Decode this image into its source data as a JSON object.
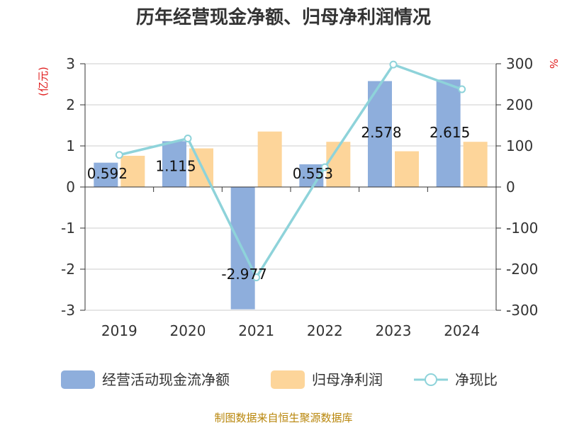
{
  "chart_data": {
    "type": "bar",
    "title": "历年经营现金净额、归母净利润情况",
    "categories": [
      "2019",
      "2020",
      "2021",
      "2022",
      "2023",
      "2024"
    ],
    "y_left": {
      "unit": "(亿元)",
      "range": [
        -3,
        3
      ],
      "ticks": [
        3,
        2,
        1,
        0,
        -1,
        -2,
        -3
      ]
    },
    "y_right": {
      "unit": "%",
      "range": [
        -300,
        300
      ],
      "ticks": [
        300,
        200,
        100,
        0,
        -100,
        -200,
        -300
      ]
    },
    "series": [
      {
        "name": "经营活动现金流净额",
        "type": "bar",
        "axis": "left",
        "color": "#8eaedc",
        "values": [
          0.592,
          1.115,
          -2.977,
          0.553,
          2.578,
          2.615
        ],
        "labels": [
          "0.592",
          "1.115",
          "-2.977",
          "0.553",
          "2.578",
          "2.615"
        ]
      },
      {
        "name": "归母净利润",
        "type": "bar",
        "axis": "left",
        "color": "#fdd59a",
        "values": [
          0.76,
          0.94,
          1.35,
          1.1,
          0.87,
          1.1
        ]
      },
      {
        "name": "净现比",
        "type": "line",
        "axis": "right",
        "color": "#8ed3da",
        "values": [
          78,
          118,
          -220,
          48,
          298,
          238
        ]
      }
    ],
    "grid": true,
    "legend_position": "bottom",
    "source": "制图数据来自恒生聚源数据库"
  }
}
